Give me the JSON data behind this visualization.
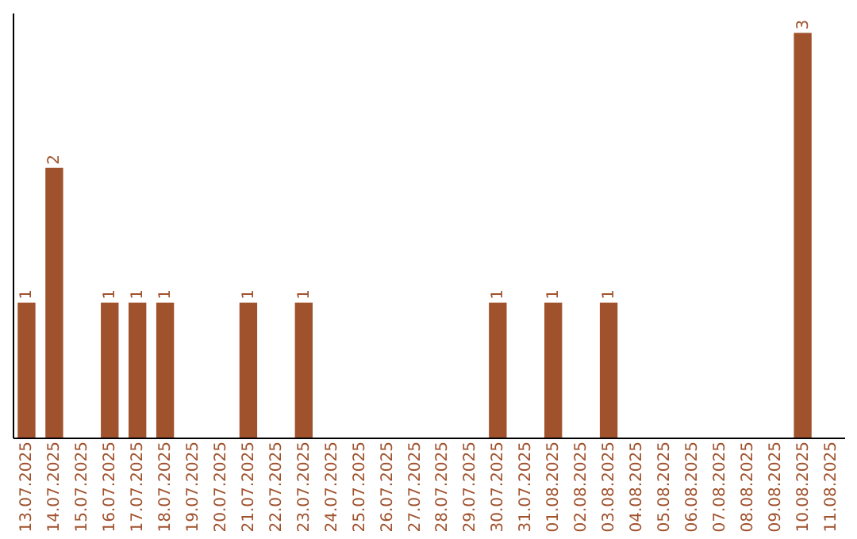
{
  "chart_data": {
    "type": "bar",
    "categories": [
      "13.07.2025",
      "14.07.2025",
      "15.07.2025",
      "16.07.2025",
      "17.07.2025",
      "18.07.2025",
      "19.07.2025",
      "20.07.2025",
      "21.07.2025",
      "22.07.2025",
      "23.07.2025",
      "24.07.2025",
      "25.07.2025",
      "26.07.2025",
      "27.07.2025",
      "28.07.2025",
      "29.07.2025",
      "30.07.2025",
      "31.07.2025",
      "01.08.2025",
      "02.08.2025",
      "03.08.2025",
      "04.08.2025",
      "05.08.2025",
      "06.08.2025",
      "07.08.2025",
      "08.08.2025",
      "09.08.2025",
      "10.08.2025",
      "11.08.2025"
    ],
    "values": [
      1,
      2,
      0,
      1,
      1,
      1,
      0,
      0,
      1,
      0,
      1,
      0,
      0,
      0,
      0,
      0,
      0,
      1,
      0,
      1,
      0,
      1,
      0,
      0,
      0,
      0,
      0,
      0,
      3,
      0
    ],
    "value_labels": [
      "1",
      "2",
      null,
      "1",
      "1",
      "1",
      null,
      null,
      "1",
      null,
      "1",
      null,
      null,
      null,
      null,
      null,
      null,
      "1",
      null,
      "1",
      null,
      "1",
      null,
      null,
      null,
      null,
      null,
      null,
      "3",
      null
    ],
    "color": "#a0522d",
    "ylim": [
      0,
      3.15
    ],
    "tick_labels": "x"
  }
}
